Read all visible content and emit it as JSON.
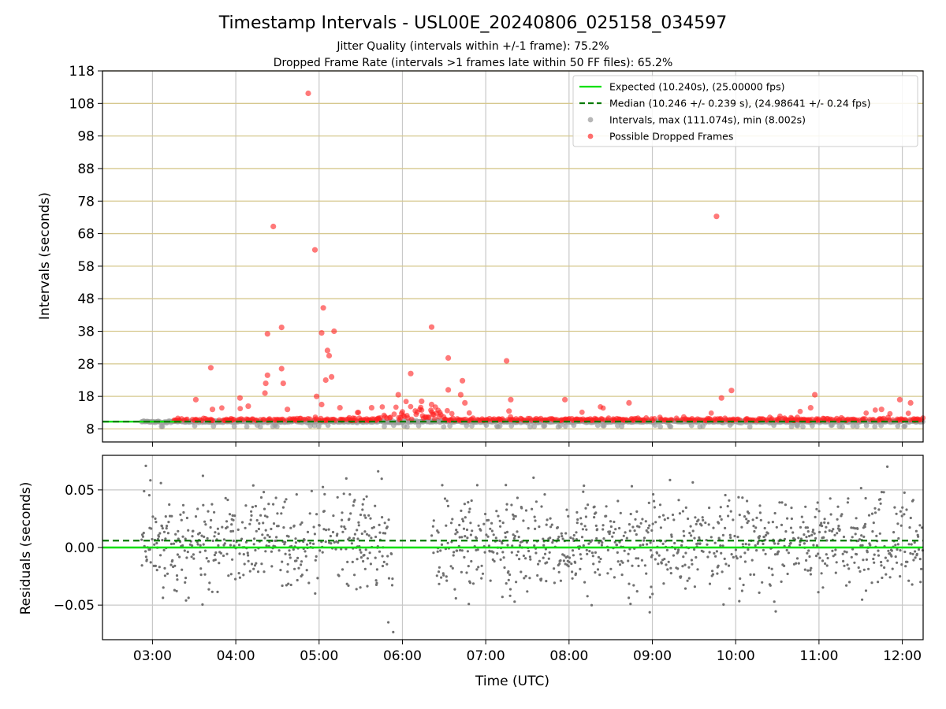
{
  "figure": {
    "title": "Timestamp Intervals - USL00E_20240806_025158_034597",
    "subtitle1": "Jitter Quality (intervals within +/-1 frame): 75.2%",
    "subtitle2": "Dropped Frame Rate (intervals >1 frames late within 50 FF files): 65.2%"
  },
  "chart_data": [
    {
      "type": "scatter",
      "panel": "intervals",
      "ylabel": "Intervals (seconds)",
      "xlim_hours": [
        2.4,
        12.25
      ],
      "ylim": [
        4,
        118
      ],
      "yticks": [
        8,
        18,
        28,
        38,
        48,
        58,
        68,
        78,
        88,
        98,
        108,
        118
      ],
      "xticks_hours": [
        3,
        4,
        5,
        6,
        7,
        8,
        9,
        10,
        11,
        12
      ],
      "grid": "on",
      "expected_line": 10.24,
      "median_line": 10.246,
      "legend_placement": "top-right",
      "legend": [
        {
          "label": "Expected (10.240s), (25.00000 fps)",
          "style": "solid-line",
          "color": "#00e000"
        },
        {
          "label": "Median (10.246 +/- 0.239 s), (24.98641 +/- 0.24 fps)",
          "style": "dashed-line",
          "color": "#007a00"
        },
        {
          "label": "Intervals, max (111.074s), min (8.002s)",
          "style": "dot",
          "color": "#999999"
        },
        {
          "label": "Possible Dropped Frames",
          "style": "dot",
          "color": "#ff3030"
        }
      ],
      "dropped_outliers": [
        [
          4.87,
          111.1
        ],
        [
          4.45,
          70.2
        ],
        [
          9.77,
          73.3
        ],
        [
          4.95,
          63.0
        ],
        [
          5.05,
          45.2
        ],
        [
          6.35,
          39.3
        ],
        [
          4.55,
          39.2
        ],
        [
          5.03,
          37.5
        ],
        [
          4.38,
          37.2
        ],
        [
          5.18,
          38.0
        ],
        [
          5.1,
          32.1
        ],
        [
          5.12,
          30.5
        ],
        [
          6.55,
          29.8
        ],
        [
          7.25,
          28.9
        ],
        [
          3.7,
          26.8
        ],
        [
          4.55,
          26.5
        ],
        [
          6.1,
          25.0
        ],
        [
          4.38,
          24.5
        ],
        [
          5.15,
          24.0
        ],
        [
          5.08,
          23.0
        ],
        [
          4.36,
          22.0
        ],
        [
          6.72,
          22.8
        ],
        [
          4.57,
          22.0
        ],
        [
          6.55,
          20.0
        ],
        [
          9.95,
          19.8
        ],
        [
          4.35,
          19.0
        ],
        [
          4.97,
          18.0
        ],
        [
          6.7,
          18.5
        ],
        [
          5.95,
          18.5
        ],
        [
          10.95,
          18.5
        ],
        [
          9.83,
          17.5
        ],
        [
          7.95,
          17.0
        ],
        [
          3.52,
          17.0
        ],
        [
          11.97,
          17.0
        ],
        [
          4.05,
          17.5
        ],
        [
          5.03,
          15.5
        ],
        [
          6.75,
          16.0
        ],
        [
          7.3,
          17.0
        ],
        [
          8.72,
          16.0
        ],
        [
          6.23,
          16.5
        ],
        [
          5.63,
          14.5
        ],
        [
          6.35,
          15.5
        ],
        [
          4.15,
          15.0
        ],
        [
          12.1,
          16.0
        ],
        [
          3.72,
          14.0
        ],
        [
          4.62,
          14.0
        ],
        [
          5.25,
          14.5
        ],
        [
          7.28,
          13.5
        ],
        [
          10.9,
          14.5
        ],
        [
          11.75,
          14.0
        ]
      ],
      "gaps_in_dense_data_hours": [
        [
          5.95,
          6.02
        ]
      ]
    },
    {
      "type": "scatter",
      "panel": "residuals",
      "xlabel": "Time (UTC)",
      "ylabel": "Residuals (seconds)",
      "xlim_hours": [
        2.4,
        12.25
      ],
      "ylim": [
        -0.08,
        0.08
      ],
      "yticks": [
        -0.05,
        0.0,
        0.05
      ],
      "ytick_labels": [
        "−0.05",
        "0.00",
        "0.05"
      ],
      "xtick_labels": [
        "03:00",
        "04:00",
        "05:00",
        "06:00",
        "07:00",
        "08:00",
        "09:00",
        "10:00",
        "11:00",
        "12:00"
      ],
      "expected_line": 0.0,
      "median_line": 0.006,
      "grid": "on",
      "gap_hours": [
        5.9,
        6.35
      ],
      "spread_std": 0.02
    }
  ]
}
